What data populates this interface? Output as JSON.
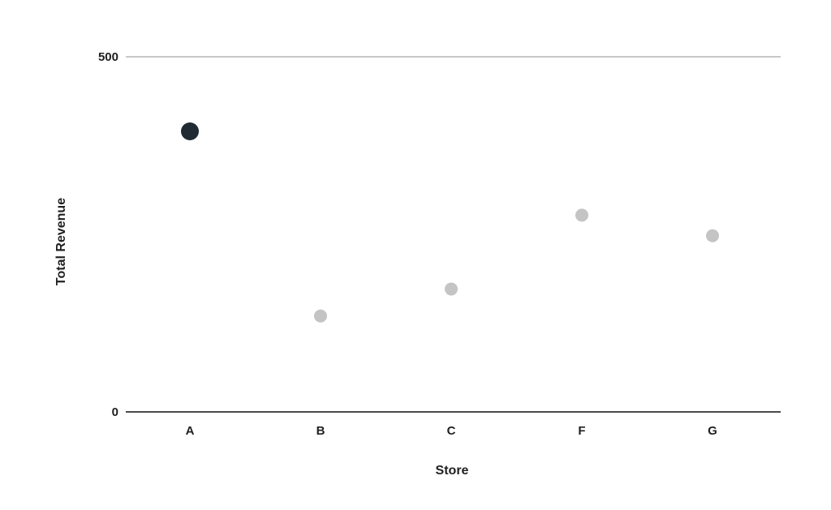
{
  "chart_data": {
    "type": "scatter",
    "title": "",
    "xlabel": "Store",
    "ylabel": "Total Revenue",
    "categories": [
      "A",
      "B",
      "C",
      "F",
      "G"
    ],
    "values": [
      395,
      135,
      173,
      277,
      248
    ],
    "highlight_index": 0,
    "ylim": [
      0,
      500
    ],
    "yticks": [
      0,
      500
    ],
    "grid": false,
    "colors": {
      "highlight_point": "#1f2a33",
      "point": "#c4c4c4",
      "top_line": "#c8c8c8",
      "baseline": "#4a4a4a"
    }
  }
}
